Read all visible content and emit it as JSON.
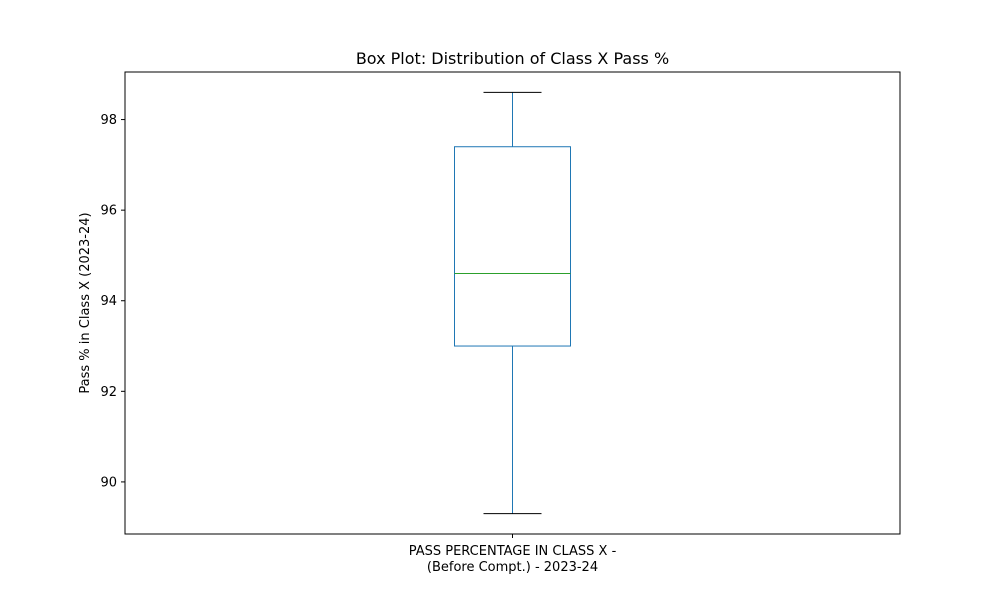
{
  "chart_data": {
    "type": "box",
    "title": "Box Plot: Distribution of Class X Pass %",
    "xlabel": "",
    "ylabel": "Pass % in Class X (2023-24)",
    "categories": [
      [
        "PASS PERCENTAGE IN CLASS X -",
        "(Before Compt.) - 2023-24"
      ]
    ],
    "boxes": [
      {
        "whisker_low": 89.3,
        "q1": 93.0,
        "median": 94.6,
        "q3": 97.4,
        "whisker_high": 98.6
      }
    ],
    "ylim": [
      88.85,
      99.05
    ],
    "yticks": [
      90,
      92,
      94,
      96,
      98
    ],
    "grid": false,
    "colors": {
      "box": "#1f77b4",
      "median": "#2ca02c",
      "cap": "#000000",
      "axes": "#000000"
    }
  }
}
